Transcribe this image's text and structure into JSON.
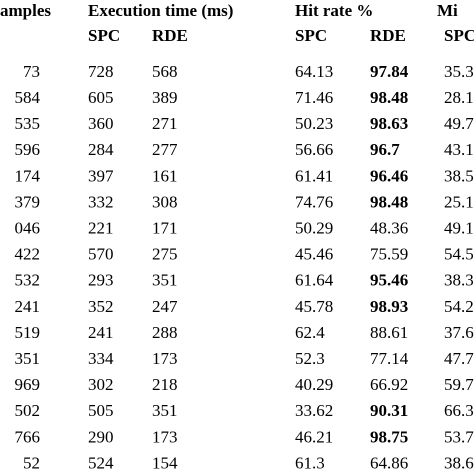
{
  "table": {
    "header": [
      "amples",
      "Execution time (ms)",
      "Hit rate %",
      "Mi"
    ],
    "subheader": [
      "SPC",
      "RDE",
      "SPC",
      "RDE",
      "SPC"
    ],
    "rows": [
      {
        "cells": [
          "73",
          "728",
          "568",
          "64.13",
          "97.84",
          "35.3"
        ],
        "hit_rde_bold": true
      },
      {
        "cells": [
          "584",
          "605",
          "389",
          "71.46",
          "98.48",
          "28.1"
        ],
        "hit_rde_bold": true
      },
      {
        "cells": [
          "535",
          "360",
          "271",
          "50.23",
          "98.63",
          "49.7"
        ],
        "hit_rde_bold": true
      },
      {
        "cells": [
          "596",
          "284",
          "277",
          "56.66",
          "96.7",
          "43.1"
        ],
        "hit_rde_bold": true
      },
      {
        "cells": [
          "174",
          "397",
          "161",
          "61.41",
          "96.46",
          "38.5"
        ],
        "hit_rde_bold": true
      },
      {
        "cells": [
          "379",
          "332",
          "308",
          "74.76",
          "98.48",
          "25.1"
        ],
        "hit_rde_bold": true
      },
      {
        "cells": [
          "046",
          "221",
          "171",
          "50.29",
          "48.36",
          "49.1"
        ],
        "hit_rde_bold": false
      },
      {
        "cells": [
          "422",
          "570",
          "275",
          "45.46",
          "75.59",
          "54.5"
        ],
        "hit_rde_bold": false
      },
      {
        "cells": [
          "532",
          "293",
          "351",
          "61.64",
          "95.46",
          "38.3"
        ],
        "hit_rde_bold": true
      },
      {
        "cells": [
          "241",
          "352",
          "247",
          "45.78",
          "98.93",
          "54.2"
        ],
        "hit_rde_bold": true
      },
      {
        "cells": [
          "519",
          "241",
          "288",
          "62.4",
          "88.61",
          "37.6"
        ],
        "hit_rde_bold": false
      },
      {
        "cells": [
          "351",
          "334",
          "173",
          "52.3",
          "77.14",
          "47.7"
        ],
        "hit_rde_bold": false
      },
      {
        "cells": [
          "969",
          "302",
          "218",
          "40.29",
          "66.92",
          "59.7"
        ],
        "hit_rde_bold": false
      },
      {
        "cells": [
          "502",
          "505",
          "351",
          "33.62",
          "90.31",
          "66.3"
        ],
        "hit_rde_bold": true
      },
      {
        "cells": [
          "766",
          "290",
          "173",
          "46.21",
          "98.75",
          "53.7"
        ],
        "hit_rde_bold": true
      },
      {
        "cells": [
          "52",
          "524",
          "154",
          "61.3",
          "64.86",
          "38.6"
        ],
        "hit_rde_bold": false
      }
    ]
  }
}
